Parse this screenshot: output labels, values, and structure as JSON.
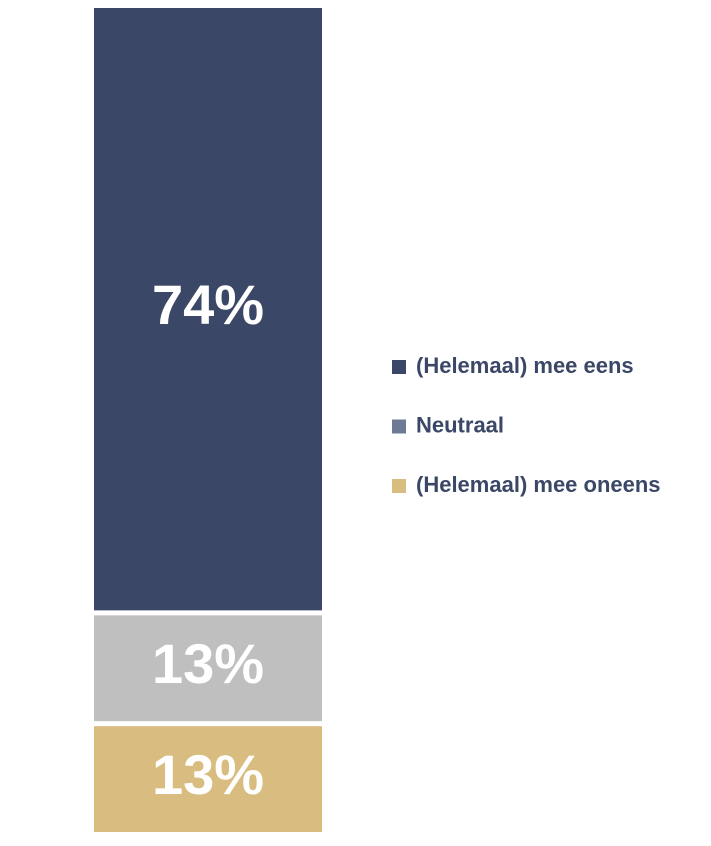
{
  "chart_data": {
    "type": "stacked_bar",
    "series": [
      {
        "name": "(Helemaal) mee oneens",
        "color": "#d9bd80",
        "values": [
          13
        ],
        "value_labels": [
          "13%"
        ]
      },
      {
        "name": "Neutraal",
        "color": "#bfbfbf",
        "legend_color": "#6e7a94",
        "values": [
          13
        ],
        "value_labels": [
          "13%"
        ]
      },
      {
        "name": "(Helemaal) mee eens",
        "color": "#3a4766",
        "values": [
          74
        ],
        "value_labels": [
          "74%"
        ]
      }
    ]
  }
}
